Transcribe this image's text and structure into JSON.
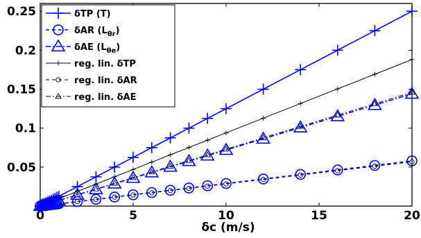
{
  "chart_data": {
    "type": "line",
    "title": "",
    "xlabel": "δc (m/s)",
    "ylabel": "",
    "xlim": [
      0,
      20
    ],
    "ylim": [
      0,
      0.26
    ],
    "xticks": [
      0,
      5,
      10,
      15,
      20
    ],
    "xtick_labels": [
      "0",
      "5",
      "10",
      "15",
      "20"
    ],
    "yticks": [
      0.05,
      0.1,
      0.15,
      0.2,
      0.25
    ],
    "ytick_labels": [
      "0.05",
      "0.1",
      "0.15",
      "0.2",
      "0.25"
    ],
    "grid": false,
    "legend_position": "top-left",
    "series": [
      {
        "name": "δTP (T)",
        "legend_main": "δTP (T)",
        "legend_sub": "",
        "legend_tail": "",
        "color": "#0000ff",
        "marker": "plus",
        "line": "solid",
        "x": [
          0,
          0.1,
          0.2,
          0.3,
          0.4,
          0.5,
          0.6,
          0.7,
          0.8,
          0.9,
          1,
          2,
          3,
          4,
          5,
          6,
          7,
          8,
          9,
          10,
          12,
          14,
          16,
          18,
          20
        ],
        "y": [
          0,
          0.00125,
          0.0025,
          0.00375,
          0.005,
          0.00625,
          0.0075,
          0.00875,
          0.01,
          0.01125,
          0.0125,
          0.025,
          0.0375,
          0.05,
          0.0625,
          0.075,
          0.0875,
          0.1,
          0.1125,
          0.125,
          0.15,
          0.175,
          0.2,
          0.225,
          0.25
        ]
      },
      {
        "name": "δAR (Lθr)",
        "legend_main": "δAR (L",
        "legend_sub": "θr",
        "legend_tail": ")",
        "color": "#0000ff",
        "marker": "circle",
        "line": "dashed",
        "x": [
          0,
          0.1,
          0.2,
          0.3,
          0.4,
          0.5,
          0.6,
          0.7,
          0.8,
          0.9,
          1,
          2,
          3,
          4,
          5,
          6,
          7,
          8,
          9,
          10,
          12,
          14,
          16,
          18,
          20
        ],
        "y": [
          0,
          0.0003,
          0.0006,
          0.0009,
          0.0012,
          0.0015,
          0.0017,
          0.002,
          0.0023,
          0.0026,
          0.0029,
          0.0058,
          0.0087,
          0.0116,
          0.0145,
          0.0174,
          0.0203,
          0.0232,
          0.0261,
          0.029,
          0.0348,
          0.0406,
          0.0464,
          0.0522,
          0.058
        ]
      },
      {
        "name": "δAE (Lθe)",
        "legend_main": "δAE (L",
        "legend_sub": "θe",
        "legend_tail": ")",
        "color": "#0000ff",
        "marker": "triangle",
        "line": "dashdot",
        "x": [
          0,
          0.1,
          0.2,
          0.3,
          0.4,
          0.5,
          0.6,
          0.7,
          0.8,
          0.9,
          1,
          2,
          3,
          4,
          5,
          6,
          7,
          8,
          9,
          10,
          12,
          14,
          16,
          18,
          20
        ],
        "y": [
          0,
          0.0007,
          0.0014,
          0.0022,
          0.0029,
          0.0036,
          0.0043,
          0.005,
          0.0058,
          0.0065,
          0.0072,
          0.0144,
          0.0216,
          0.0288,
          0.036,
          0.0432,
          0.0504,
          0.0576,
          0.0648,
          0.072,
          0.0864,
          0.1008,
          0.1152,
          0.1296,
          0.144
        ]
      },
      {
        "name": "reg. lin. δTP",
        "legend_main": "reg. lin. δTP",
        "legend_sub": "",
        "legend_tail": "",
        "color": "#000000",
        "marker": "plus-small",
        "line": "solid-thin",
        "x": [
          0,
          1,
          2,
          3,
          4,
          5,
          6,
          7,
          8,
          9,
          10,
          12,
          14,
          16,
          18,
          20
        ],
        "y": [
          0,
          0.0094,
          0.0188,
          0.0282,
          0.0376,
          0.047,
          0.0564,
          0.0658,
          0.0752,
          0.0846,
          0.094,
          0.1128,
          0.1316,
          0.1504,
          0.1692,
          0.188
        ]
      },
      {
        "name": "reg. lin. δAR",
        "legend_main": "reg. lin. δAR",
        "legend_sub": "",
        "legend_tail": "",
        "color": "#000000",
        "marker": "circle-small",
        "line": "dashed-thin",
        "x": [
          0,
          1,
          2,
          3,
          4,
          5,
          6,
          7,
          8,
          9,
          10,
          12,
          14,
          16,
          18,
          20
        ],
        "y": [
          0,
          0.0028,
          0.0057,
          0.0085,
          0.0114,
          0.0142,
          0.017,
          0.0199,
          0.0227,
          0.0256,
          0.0284,
          0.0341,
          0.0398,
          0.0454,
          0.0511,
          0.0568
        ]
      },
      {
        "name": "reg. lin. δAE",
        "legend_main": "reg. lin. δAE",
        "legend_sub": "",
        "legend_tail": "",
        "color": "#000000",
        "marker": "triangle-small",
        "line": "dashdot-thin",
        "x": [
          0,
          1,
          2,
          3,
          4,
          5,
          6,
          7,
          8,
          9,
          10,
          12,
          14,
          16,
          18,
          20
        ],
        "y": [
          0,
          0.0073,
          0.0146,
          0.0219,
          0.0292,
          0.0365,
          0.0438,
          0.0511,
          0.0584,
          0.0657,
          0.073,
          0.0876,
          0.1022,
          0.1168,
          0.1314,
          0.146
        ]
      }
    ]
  }
}
